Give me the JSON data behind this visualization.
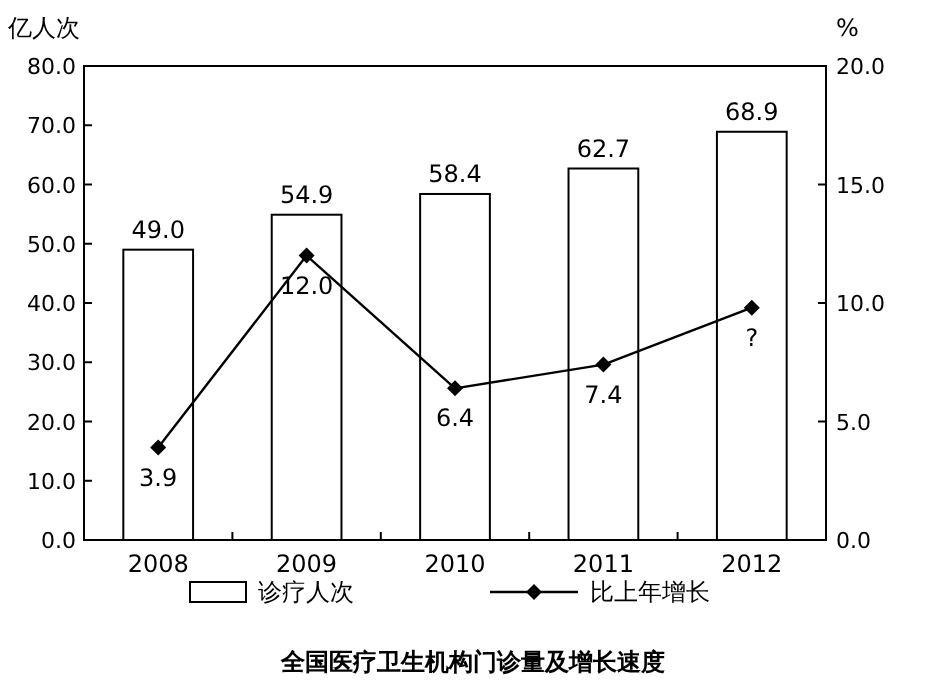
{
  "chart_data": {
    "type": "bar",
    "title": "全国医疗卫生机构门诊量及增长速度",
    "ylabel": "亿人次",
    "y2label": "%",
    "categories": [
      "2008",
      "2009",
      "2010",
      "2011",
      "2012"
    ],
    "series": [
      {
        "name": "诊疗人次",
        "color": "#ffffff",
        "values": [
          49.0,
          54.9,
          58.4,
          62.7,
          68.9
        ],
        "value_labels": [
          "49.0",
          "54.9",
          "58.4",
          "62.7",
          "68.9"
        ]
      },
      {
        "name": "比上年增长",
        "type": "line",
        "axis": "y2",
        "color": "#000000",
        "marker": "diamond",
        "values": [
          3.9,
          12.0,
          6.4,
          7.4,
          9.8
        ],
        "value_labels": [
          "3.9",
          "12.0",
          "6.4",
          "7.4",
          "?"
        ]
      }
    ],
    "ylim": [
      0,
      80
    ],
    "yticks": [
      {
        "value": 0,
        "label": "0.0"
      },
      {
        "value": 10,
        "label": "10.0"
      },
      {
        "value": 20,
        "label": "20.0"
      },
      {
        "value": 30,
        "label": "30.0"
      },
      {
        "value": 40,
        "label": "40.0"
      },
      {
        "value": 50,
        "label": "50.0"
      },
      {
        "value": 60,
        "label": "60.0"
      },
      {
        "value": 70,
        "label": "70.0"
      },
      {
        "value": 80,
        "label": "80.0"
      }
    ],
    "y2lim": [
      0,
      20
    ],
    "y2ticks": [
      {
        "value": 0,
        "label": "0.0"
      },
      {
        "value": 5,
        "label": "5.0"
      },
      {
        "value": 10,
        "label": "10.0"
      },
      {
        "value": 15,
        "label": "15.0"
      },
      {
        "value": 20,
        "label": "20.0"
      }
    ],
    "legend": "bottom"
  }
}
